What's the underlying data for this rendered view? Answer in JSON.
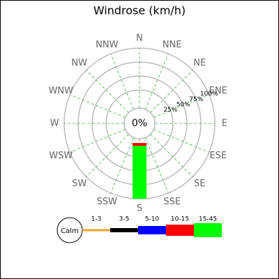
{
  "chart_data": {
    "type": "windrose",
    "title": "Windrose (km/h)",
    "categories": [
      "N",
      "NNE",
      "NE",
      "ENE",
      "E",
      "ESE",
      "SE",
      "SSE",
      "S",
      "SSW",
      "SW",
      "WSW",
      "W",
      "WNW",
      "NW",
      "NNW"
    ],
    "calm_label": "Calm",
    "calm_value": 0,
    "calm_value_label": "0%",
    "rlim": [
      0,
      100
    ],
    "rticks": [
      {
        "value": 25,
        "label": "25%"
      },
      {
        "value": 50,
        "label": "50%"
      },
      {
        "value": 75,
        "label": "75%"
      },
      {
        "value": 100,
        "label": "100%"
      }
    ],
    "series": [
      {
        "name": "1-3",
        "color": "#f5a623",
        "values": [
          0,
          0,
          0,
          0,
          0,
          0,
          0,
          0,
          0,
          0,
          0,
          0,
          0,
          0,
          0,
          0
        ]
      },
      {
        "name": "3-5",
        "color": "#000000",
        "values": [
          0,
          0,
          0,
          0,
          0,
          0,
          0,
          0,
          0,
          0,
          0,
          0,
          0,
          0,
          0,
          0
        ]
      },
      {
        "name": "5-10",
        "color": "#0000ff",
        "values": [
          0,
          0,
          0,
          0,
          0,
          0,
          0,
          0,
          0,
          0,
          0,
          0,
          0,
          0,
          0,
          0
        ]
      },
      {
        "name": "10-15",
        "color": "#ff0000",
        "values": [
          0,
          0,
          0,
          0,
          0,
          0,
          0,
          0,
          5,
          0,
          0,
          0,
          0,
          0,
          0,
          0
        ]
      },
      {
        "name": "15-45",
        "color": "#00ff00",
        "values": [
          0,
          0,
          0,
          0,
          0,
          0,
          0,
          0,
          95,
          0,
          0,
          0,
          0,
          0,
          0,
          0
        ]
      }
    ]
  }
}
